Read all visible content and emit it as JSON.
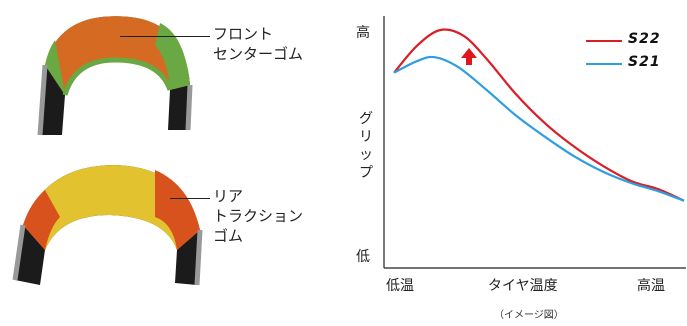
{
  "tires": [
    {
      "label": "フロント\nセンターゴム",
      "colors": {
        "center": "#d56a22",
        "shoulder": "#6aa844",
        "carcass": "#1b1b1b",
        "edge": "#888888"
      }
    },
    {
      "label": "リア\nトラクション\nゴム",
      "colors": {
        "center": "#e2c22e",
        "shoulder": "#d7521c",
        "carcass": "#1b1b1b",
        "edge": "#888888"
      }
    }
  ],
  "chart_data": {
    "type": "line",
    "ylabel_top": "高",
    "ylabel_mid": "グリップ",
    "ylabel_bottom": "低",
    "x_ticks": [
      "低温",
      "タイヤ温度",
      "高温"
    ],
    "note": "（イメージ図）",
    "series": [
      {
        "name": "S22",
        "color": "#d81f26",
        "x": [
          0,
          0.08,
          0.16,
          0.24,
          0.32,
          0.42,
          0.52,
          0.62,
          0.72,
          0.82,
          0.91,
          1.0
        ],
        "y": [
          0.78,
          0.92,
          1.0,
          0.97,
          0.85,
          0.67,
          0.52,
          0.4,
          0.3,
          0.22,
          0.18,
          0.12
        ]
      },
      {
        "name": "S21",
        "color": "#2f9ee0",
        "x": [
          0,
          0.08,
          0.14,
          0.22,
          0.32,
          0.42,
          0.52,
          0.62,
          0.72,
          0.82,
          0.91,
          1.0
        ],
        "y": [
          0.78,
          0.84,
          0.86,
          0.81,
          0.69,
          0.56,
          0.45,
          0.35,
          0.27,
          0.21,
          0.17,
          0.12
        ]
      }
    ],
    "xlim": [
      0,
      1
    ],
    "ylim": [
      0,
      1
    ],
    "legend": "top-right",
    "grid": false,
    "annotation": "red-up-arrow"
  }
}
